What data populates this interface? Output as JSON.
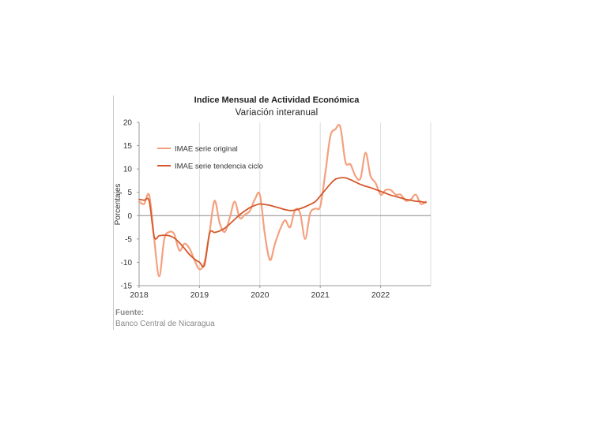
{
  "chart_data": {
    "type": "line",
    "title": "Indice Mensual de  Actividad Económica",
    "subtitle": "Variación interanual",
    "ylabel": "Porcentajes",
    "xlabel": "",
    "ylim": [
      -15,
      20
    ],
    "yticks": [
      20,
      15,
      10,
      5,
      0,
      -5,
      -10,
      -15
    ],
    "xlim": [
      2018.0,
      2022.83
    ],
    "xticks": [
      2018,
      2019,
      2020,
      2021,
      2022
    ],
    "grid": "vertical",
    "legend_position": "top-left",
    "source_label": "Fuente:",
    "source_text": "Banco Central de Nicaragua",
    "series": [
      {
        "name": "IMAE serie original",
        "color": "#f4a07e",
        "x": [
          2018.0,
          2018.083,
          2018.167,
          2018.25,
          2018.333,
          2018.417,
          2018.5,
          2018.583,
          2018.667,
          2018.75,
          2018.833,
          2018.917,
          2019.0,
          2019.083,
          2019.167,
          2019.25,
          2019.333,
          2019.417,
          2019.5,
          2019.583,
          2019.667,
          2019.75,
          2019.833,
          2019.917,
          2020.0,
          2020.083,
          2020.167,
          2020.25,
          2020.333,
          2020.417,
          2020.5,
          2020.583,
          2020.667,
          2020.75,
          2020.833,
          2020.917,
          2021.0,
          2021.083,
          2021.167,
          2021.25,
          2021.333,
          2021.417,
          2021.5,
          2021.583,
          2021.667,
          2021.75,
          2021.833,
          2021.917,
          2022.0,
          2022.083,
          2022.167,
          2022.25,
          2022.333,
          2022.417,
          2022.5,
          2022.583,
          2022.667,
          2022.75
        ],
        "values": [
          3.0,
          2.5,
          4.4,
          -5.0,
          -13.0,
          -5.0,
          -3.5,
          -4.0,
          -7.5,
          -6.0,
          -7.0,
          -9.5,
          -11.5,
          -10.0,
          -3.5,
          3.2,
          -1.5,
          -3.5,
          -0.5,
          3.0,
          -0.5,
          0.2,
          1.0,
          3.5,
          4.5,
          -4.0,
          -9.5,
          -6.0,
          -3.0,
          -1.0,
          -2.5,
          1.2,
          0.5,
          -5.0,
          0.5,
          1.5,
          2.0,
          9.0,
          17.0,
          18.5,
          19.0,
          11.5,
          11.0,
          8.5,
          8.0,
          13.5,
          8.5,
          7.0,
          4.5,
          5.5,
          5.5,
          4.5,
          4.5,
          3.2,
          3.5,
          4.5,
          2.5,
          3.0
        ]
      },
      {
        "name": "IMAE serie  tendencia ciclo",
        "color": "#d4582c",
        "x": [
          2018.0,
          2018.083,
          2018.167,
          2018.25,
          2018.333,
          2018.417,
          2018.5,
          2018.583,
          2018.667,
          2018.75,
          2018.833,
          2018.917,
          2019.0,
          2019.083,
          2019.167,
          2019.25,
          2019.333,
          2019.417,
          2019.5,
          2019.583,
          2019.667,
          2019.75,
          2019.833,
          2019.917,
          2020.0,
          2020.083,
          2020.167,
          2020.25,
          2020.333,
          2020.417,
          2020.5,
          2020.583,
          2020.667,
          2020.75,
          2020.833,
          2020.917,
          2021.0,
          2021.083,
          2021.167,
          2021.25,
          2021.333,
          2021.417,
          2021.5,
          2021.583,
          2021.667,
          2021.75,
          2021.833,
          2021.917,
          2022.0,
          2022.083,
          2022.167,
          2022.25,
          2022.333,
          2022.417,
          2022.5,
          2022.583,
          2022.667,
          2022.75
        ],
        "values": [
          3.5,
          3.3,
          3.1,
          -4.5,
          -4.3,
          -4.2,
          -4.3,
          -4.8,
          -5.8,
          -7.0,
          -8.3,
          -9.3,
          -10.0,
          -10.6,
          -3.8,
          -3.6,
          -3.3,
          -2.7,
          -1.8,
          -0.8,
          0.2,
          1.0,
          1.7,
          2.2,
          2.5,
          2.4,
          2.2,
          1.9,
          1.6,
          1.3,
          1.1,
          1.2,
          1.5,
          1.9,
          2.4,
          3.0,
          4.2,
          5.5,
          6.8,
          7.8,
          8.1,
          8.1,
          7.7,
          7.2,
          6.7,
          6.3,
          6.0,
          5.6,
          5.2,
          4.8,
          4.4,
          4.1,
          3.8,
          3.5,
          3.3,
          3.1,
          3.0,
          2.8
        ]
      }
    ]
  }
}
